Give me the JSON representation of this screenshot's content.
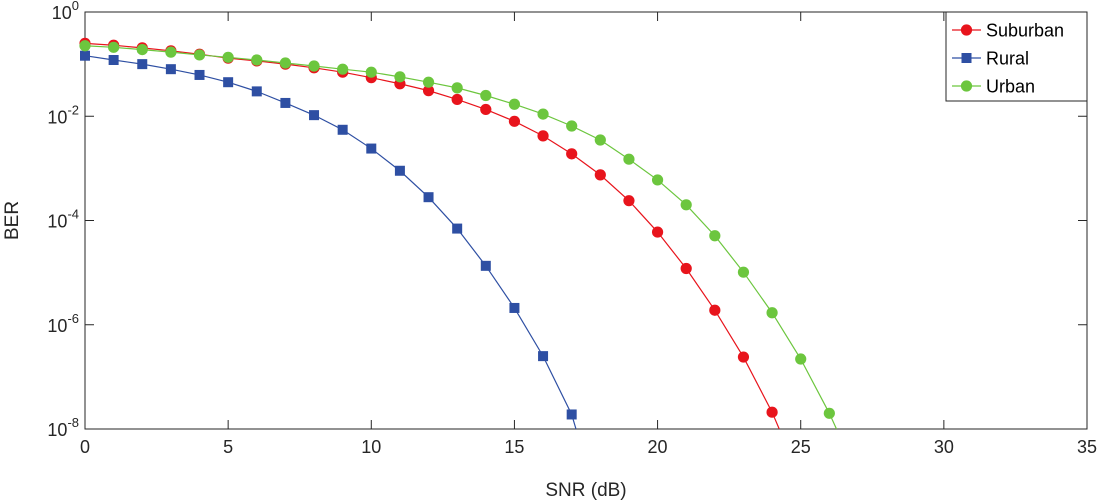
{
  "chart_data": {
    "type": "line",
    "title": "",
    "xlabel": "SNR (dB)",
    "ylabel": "BER",
    "xlim": [
      0,
      35
    ],
    "ylim": [
      1e-08,
      1
    ],
    "yscale": "log",
    "grid": false,
    "legend_position": "top-right",
    "x_ticks": [
      {
        "value": 0,
        "label": "0"
      },
      {
        "value": 5,
        "label": "5"
      },
      {
        "value": 10,
        "label": "10"
      },
      {
        "value": 15,
        "label": "15"
      },
      {
        "value": 20,
        "label": "20"
      },
      {
        "value": 25,
        "label": "25"
      },
      {
        "value": 30,
        "label": "30"
      },
      {
        "value": 35,
        "label": "35"
      }
    ],
    "y_ticks": [
      {
        "value": 1,
        "base": "10",
        "exp": "0"
      },
      {
        "value": 0.01,
        "base": "10",
        "exp": "-2"
      },
      {
        "value": 0.0001,
        "base": "10",
        "exp": "-4"
      },
      {
        "value": 1e-06,
        "base": "10",
        "exp": "-6"
      },
      {
        "value": 1e-08,
        "base": "10",
        "exp": "-8"
      }
    ],
    "series": [
      {
        "name": "Suburban",
        "color": "#e8141c",
        "marker": "circle",
        "x": [
          0,
          1,
          2,
          3,
          4,
          5,
          6,
          7,
          8,
          9,
          10,
          11,
          12,
          13,
          14,
          15,
          16,
          17,
          18,
          19,
          20,
          21,
          22,
          23,
          24,
          24.25
        ],
        "values": [
          0.25,
          0.23,
          0.205,
          0.18,
          0.155,
          0.13,
          0.115,
          0.1,
          0.085,
          0.07,
          0.055,
          0.042,
          0.031,
          0.021,
          0.0135,
          0.008,
          0.0042,
          0.0019,
          0.00075,
          0.00024,
          6e-05,
          1.2e-05,
          1.9e-06,
          2.4e-07,
          2.1e-08,
          1e-08
        ]
      },
      {
        "name": "Rural",
        "color": "#2e4fa3",
        "marker": "square",
        "x": [
          0,
          1,
          2,
          3,
          4,
          5,
          6,
          7,
          8,
          9,
          10,
          11,
          12,
          13,
          14,
          15,
          16,
          17,
          17.15
        ],
        "values": [
          0.145,
          0.12,
          0.1,
          0.08,
          0.062,
          0.045,
          0.03,
          0.018,
          0.0105,
          0.0055,
          0.0024,
          0.0009,
          0.00028,
          7e-05,
          1.35e-05,
          2.1e-06,
          2.5e-07,
          1.9e-08,
          1e-08
        ]
      },
      {
        "name": "Urban",
        "color": "#6cc63e",
        "marker": "circle",
        "x": [
          0,
          1,
          2,
          3,
          4,
          5,
          6,
          7,
          8,
          9,
          10,
          11,
          12,
          13,
          14,
          15,
          16,
          17,
          18,
          19,
          20,
          21,
          22,
          23,
          24,
          25,
          26,
          26.25
        ],
        "values": [
          0.225,
          0.21,
          0.19,
          0.17,
          0.15,
          0.135,
          0.12,
          0.105,
          0.092,
          0.08,
          0.07,
          0.057,
          0.045,
          0.035,
          0.025,
          0.017,
          0.011,
          0.0065,
          0.0035,
          0.0015,
          0.0006,
          0.0002,
          5.1e-05,
          1.02e-05,
          1.7e-06,
          2.2e-07,
          2e-08,
          1e-08
        ]
      }
    ]
  }
}
